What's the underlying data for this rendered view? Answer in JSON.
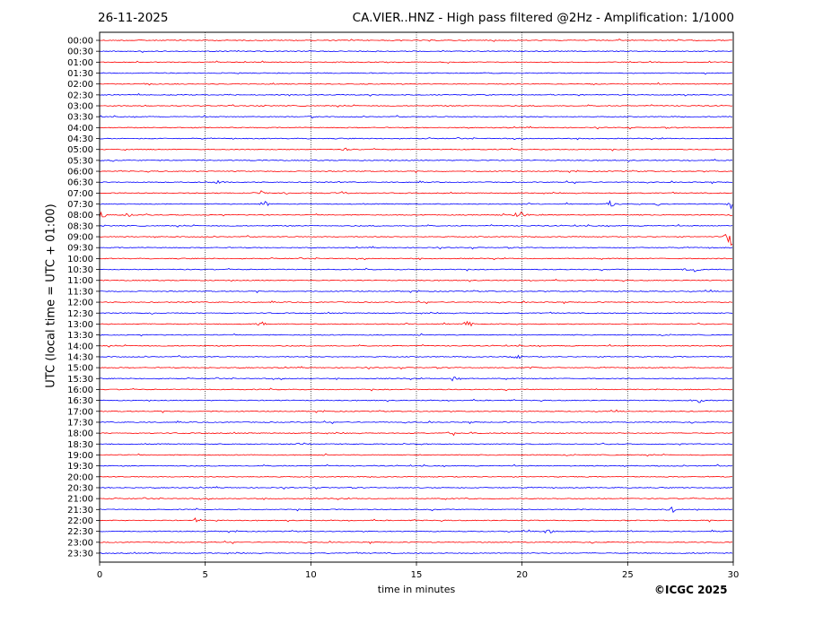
{
  "header": {
    "date": "26-11-2025",
    "title": "CA.VIER..HNZ - High pass filtered @2Hz - Amplification: 1/1000"
  },
  "footer": {
    "credit": "©ICGC 2025"
  },
  "chart_data": {
    "type": "line",
    "xlabel": "time in minutes",
    "ylabel": "UTC (local time = UTC + 01:00)",
    "xlim": [
      0,
      30
    ],
    "x_ticks": [
      "0",
      "5",
      "10",
      "15",
      "20",
      "25",
      "30"
    ],
    "y_ticks": [
      "00:00",
      "00:30",
      "01:00",
      "01:30",
      "02:00",
      "02:30",
      "03:00",
      "03:30",
      "04:00",
      "04:30",
      "05:00",
      "05:30",
      "06:00",
      "06:30",
      "07:00",
      "07:30",
      "08:00",
      "08:30",
      "09:00",
      "09:30",
      "10:00",
      "10:30",
      "11:00",
      "11:30",
      "12:00",
      "12:30",
      "13:00",
      "13:30",
      "14:00",
      "14:30",
      "15:00",
      "15:30",
      "16:00",
      "16:30",
      "17:00",
      "17:30",
      "18:00",
      "18:30",
      "19:00",
      "19:30",
      "20:00",
      "20:30",
      "21:00",
      "21:30",
      "22:00",
      "22:30",
      "23:00",
      "23:30"
    ],
    "trace_colors": [
      "#ff0000",
      "#0000ff"
    ],
    "grid": "vertical dotted at 5-minute intervals",
    "events": [
      {
        "trace": "07:30",
        "minute": 24.2,
        "amp": 5
      },
      {
        "trace": "07:30",
        "minute": 26.6,
        "amp": 4
      },
      {
        "trace": "07:30",
        "minute": 29.9,
        "amp": 5
      },
      {
        "trace": "07:30",
        "minute": 7.8,
        "amp": 4
      },
      {
        "trace": "08:00",
        "minute": 0.1,
        "amp": 6
      },
      {
        "trace": "08:00",
        "minute": 1.4,
        "amp": 3
      },
      {
        "trace": "08:00",
        "minute": 19.9,
        "amp": 7
      },
      {
        "trace": "09:00",
        "minute": 29.9,
        "amp": 14
      },
      {
        "trace": "10:30",
        "minute": 28.1,
        "amp": 6
      },
      {
        "trace": "13:00",
        "minute": 17.4,
        "amp": 5
      },
      {
        "trace": "13:00",
        "minute": 7.7,
        "amp": 3
      },
      {
        "trace": "14:30",
        "minute": 19.8,
        "amp": 3
      },
      {
        "trace": "15:00",
        "minute": 20.5,
        "amp": 3
      },
      {
        "trace": "15:30",
        "minute": 16.8,
        "amp": 4
      },
      {
        "trace": "16:30",
        "minute": 28.4,
        "amp": 3
      },
      {
        "trace": "18:00",
        "minute": 16.7,
        "amp": 4
      },
      {
        "trace": "18:30",
        "minute": 9.5,
        "amp": 3
      },
      {
        "trace": "21:00",
        "minute": 17.5,
        "amp": 3
      },
      {
        "trace": "21:30",
        "minute": 27.1,
        "amp": 4
      },
      {
        "trace": "22:00",
        "minute": 4.6,
        "amp": 4
      },
      {
        "trace": "22:30",
        "minute": 21.2,
        "amp": 4
      },
      {
        "trace": "05:00",
        "minute": 11.7,
        "amp": 2
      },
      {
        "trace": "07:00",
        "minute": 7.6,
        "amp": 3
      },
      {
        "trace": "07:00",
        "minute": 11.5,
        "amp": 3
      },
      {
        "trace": "03:30",
        "minute": 10.1,
        "amp": 2
      },
      {
        "trace": "06:30",
        "minute": 5.6,
        "amp": 2
      }
    ]
  }
}
